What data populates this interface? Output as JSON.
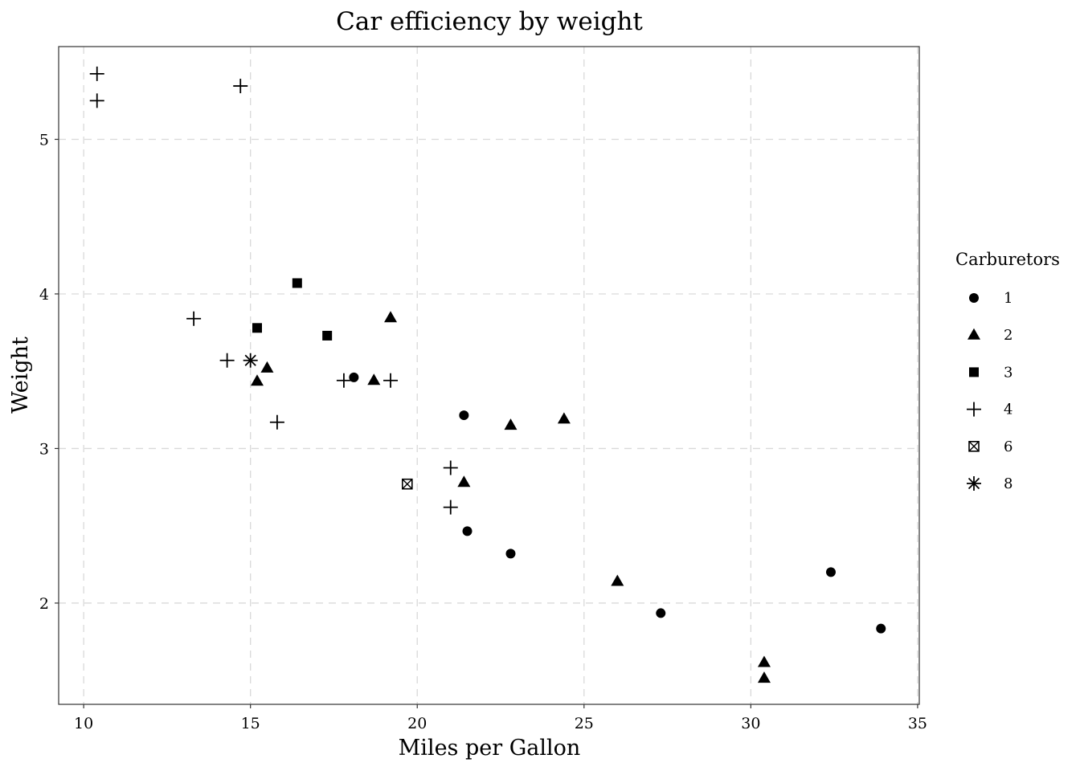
{
  "chart_data": {
    "type": "scatter",
    "title": "Car efficiency by weight",
    "xlabel": "Miles per Gallon",
    "ylabel": "Weight",
    "xlim": [
      9.25,
      35.05
    ],
    "ylim": [
      1.345,
      5.6
    ],
    "x_ticks": [
      10,
      15,
      20,
      25,
      30,
      35
    ],
    "y_ticks": [
      2,
      3,
      4,
      5
    ],
    "grid": true,
    "legend": {
      "title": "Carburetors",
      "position": "right"
    },
    "series": [
      {
        "name": "1",
        "marker": "circle",
        "x": [
          18.1,
          21.4,
          21.5,
          22.8,
          27.3,
          32.4,
          33.9
        ],
        "y": [
          3.46,
          3.215,
          2.465,
          2.32,
          1.935,
          2.2,
          1.835
        ]
      },
      {
        "name": "2",
        "marker": "triangle",
        "x": [
          15.2,
          15.5,
          18.7,
          19.2,
          21.4,
          22.8,
          24.4,
          26.0,
          30.4,
          30.4
        ],
        "y": [
          3.435,
          3.52,
          3.44,
          3.845,
          2.78,
          3.15,
          3.19,
          2.14,
          1.615,
          1.513
        ]
      },
      {
        "name": "3",
        "marker": "square",
        "x": [
          15.2,
          16.4,
          17.3
        ],
        "y": [
          3.78,
          4.07,
          3.73
        ]
      },
      {
        "name": "4",
        "marker": "plus",
        "x": [
          10.4,
          10.4,
          13.3,
          14.3,
          14.7,
          15.8,
          17.8,
          19.2,
          21.0,
          21.0
        ],
        "y": [
          5.424,
          5.25,
          3.84,
          3.57,
          5.345,
          3.17,
          3.44,
          3.44,
          2.875,
          2.62
        ]
      },
      {
        "name": "6",
        "marker": "square-x",
        "x": [
          19.7
        ],
        "y": [
          2.77
        ]
      },
      {
        "name": "8",
        "marker": "asterisk",
        "x": [
          15.0
        ],
        "y": [
          3.57
        ]
      }
    ]
  }
}
